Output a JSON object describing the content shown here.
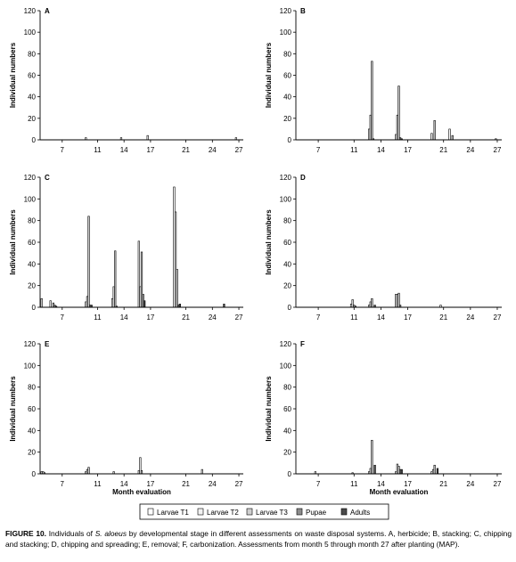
{
  "chart_data": {
    "type": "bar",
    "legend": {
      "position": "bottom",
      "entries": [
        {
          "name": "Larvae T1",
          "color": "#ffffff"
        },
        {
          "name": "Larvae T2",
          "color": "#f2f2f2"
        },
        {
          "name": "Larvae T3",
          "color": "#cfcfcf"
        },
        {
          "name": "Pupae",
          "color": "#8c8c8c"
        },
        {
          "name": "Adults",
          "color": "#4a4a4a"
        }
      ]
    },
    "ylabel": "Individual numbers",
    "xlabel": "Month evaluation",
    "ylim": [
      0,
      120
    ],
    "yticks": [
      "0",
      "20",
      "40",
      "60",
      "80",
      "100",
      "120"
    ],
    "months": [
      5,
      6,
      7,
      8,
      9,
      10,
      11,
      12,
      13,
      14,
      15,
      16,
      17,
      18,
      19,
      20,
      21,
      22,
      23,
      24,
      25,
      26,
      27
    ],
    "xticks": [
      "7",
      "11",
      "14",
      "17",
      "21",
      "24",
      "27"
    ],
    "xtick_months": [
      7,
      11,
      14,
      17,
      21,
      24,
      27
    ],
    "panels": [
      {
        "label": "A",
        "series": [
          {
            "name": "Larvae T1",
            "values": [
              0,
              0,
              0,
              0,
              0,
              2,
              0,
              0,
              0,
              2,
              0,
              0,
              4,
              0,
              0,
              0,
              0,
              0,
              0,
              0,
              0,
              0,
              2
            ]
          },
          {
            "name": "Larvae T2",
            "values": [
              0,
              0,
              0,
              0,
              0,
              0,
              0,
              0,
              0,
              0,
              0,
              0,
              0,
              0,
              0,
              0,
              0,
              0,
              0,
              0,
              0,
              0,
              0
            ]
          },
          {
            "name": "Larvae T3",
            "values": [
              0,
              0,
              0,
              0,
              0,
              0,
              0,
              0,
              0,
              0,
              0,
              0,
              0,
              0,
              0,
              0,
              0,
              0,
              0,
              0,
              0,
              0,
              0
            ]
          },
          {
            "name": "Pupae",
            "values": [
              0,
              0,
              0,
              0,
              0,
              0,
              0,
              0,
              0,
              0,
              0,
              0,
              0,
              0,
              0,
              0,
              0,
              0,
              0,
              0,
              0,
              0,
              0
            ]
          },
          {
            "name": "Adults",
            "values": [
              0,
              0,
              0,
              0,
              0,
              0,
              0,
              0,
              0,
              0,
              0,
              0,
              0,
              0,
              0,
              0,
              0,
              0,
              0,
              0,
              0,
              0,
              0
            ]
          }
        ]
      },
      {
        "label": "B",
        "series": [
          {
            "name": "Larvae T1",
            "values": [
              0,
              0,
              0,
              0,
              0,
              0,
              0,
              0,
              10,
              0,
              0,
              5,
              0,
              0,
              0,
              6,
              0,
              10,
              0,
              0,
              0,
              0,
              0
            ]
          },
          {
            "name": "Larvae T2",
            "values": [
              0,
              0,
              0,
              0,
              0,
              0,
              0,
              0,
              23,
              0,
              0,
              23,
              0,
              0,
              0,
              0,
              0,
              0,
              0,
              0,
              0,
              0,
              1
            ]
          },
          {
            "name": "Larvae T3",
            "values": [
              0,
              0,
              0,
              0,
              0,
              0,
              0,
              0,
              73,
              0,
              0,
              50,
              0,
              0,
              0,
              18,
              0,
              4,
              0,
              0,
              0,
              0,
              0
            ]
          },
          {
            "name": "Pupae",
            "values": [
              0,
              0,
              0,
              0,
              0,
              0,
              0,
              0,
              1,
              0,
              0,
              2,
              0,
              0,
              0,
              0,
              0,
              0,
              0,
              0,
              0,
              0,
              0
            ]
          },
          {
            "name": "Adults",
            "values": [
              0,
              0,
              0,
              0,
              0,
              0,
              0,
              0,
              0,
              0,
              0,
              1,
              0,
              0,
              0,
              0,
              0,
              0,
              0,
              0,
              0,
              0,
              0
            ]
          }
        ]
      },
      {
        "label": "C",
        "series": [
          {
            "name": "Larvae T1",
            "values": [
              8,
              6,
              0,
              0,
              0,
              5,
              0,
              0,
              8,
              0,
              0,
              61,
              0,
              0,
              0,
              111,
              0,
              0,
              0,
              0,
              0,
              0,
              0
            ]
          },
          {
            "name": "Larvae T2",
            "values": [
              0,
              0,
              0,
              0,
              0,
              10,
              0,
              0,
              19,
              0,
              0,
              19,
              0,
              0,
              0,
              88,
              0,
              0,
              0,
              0,
              0,
              0,
              0
            ]
          },
          {
            "name": "Larvae T3",
            "values": [
              0,
              4,
              0,
              0,
              0,
              84,
              0,
              0,
              52,
              0,
              0,
              51,
              0,
              0,
              0,
              35,
              0,
              0,
              0,
              0,
              0,
              0,
              0
            ]
          },
          {
            "name": "Pupae",
            "values": [
              0,
              2,
              0,
              0,
              0,
              2,
              0,
              0,
              1,
              0,
              0,
              12,
              0,
              0,
              0,
              2,
              0,
              0,
              0,
              0,
              0,
              0,
              0
            ]
          },
          {
            "name": "Adults",
            "values": [
              0,
              1,
              0,
              0,
              0,
              2,
              0,
              0,
              0,
              0,
              0,
              6,
              0,
              0,
              0,
              3,
              0,
              0,
              0,
              0,
              3,
              0,
              0
            ]
          }
        ]
      },
      {
        "label": "D",
        "series": [
          {
            "name": "Larvae T1",
            "values": [
              0,
              0,
              0,
              0,
              0,
              0,
              3,
              0,
              2,
              0,
              0,
              12,
              0,
              0,
              0,
              0,
              2,
              0,
              0,
              0,
              0,
              0,
              0
            ]
          },
          {
            "name": "Larvae T2",
            "values": [
              0,
              0,
              0,
              0,
              0,
              0,
              7,
              0,
              5,
              0,
              0,
              12,
              0,
              0,
              0,
              0,
              0,
              0,
              0,
              0,
              0,
              0,
              0
            ]
          },
          {
            "name": "Larvae T3",
            "values": [
              0,
              0,
              0,
              0,
              0,
              0,
              2,
              0,
              8,
              0,
              0,
              13,
              0,
              0,
              0,
              0,
              0,
              0,
              0,
              0,
              0,
              0,
              0
            ]
          },
          {
            "name": "Pupae",
            "values": [
              0,
              0,
              0,
              0,
              0,
              0,
              1,
              0,
              0,
              0,
              0,
              2,
              0,
              0,
              0,
              0,
              0,
              0,
              0,
              0,
              0,
              0,
              0
            ]
          },
          {
            "name": "Adults",
            "values": [
              0,
              0,
              0,
              0,
              0,
              0,
              0,
              0,
              2,
              0,
              0,
              0,
              0,
              0,
              0,
              0,
              0,
              0,
              0,
              0,
              0,
              0,
              0
            ]
          }
        ]
      },
      {
        "label": "E",
        "series": [
          {
            "name": "Larvae T1",
            "values": [
              2,
              0,
              0,
              0,
              0,
              2,
              0,
              0,
              0,
              0,
              0,
              3,
              0,
              0,
              0,
              0,
              0,
              0,
              0,
              0,
              0,
              0,
              0
            ]
          },
          {
            "name": "Larvae T2",
            "values": [
              2,
              0,
              0,
              0,
              0,
              4,
              0,
              0,
              2,
              0,
              0,
              15,
              0,
              0,
              0,
              0,
              0,
              0,
              4,
              0,
              0,
              0,
              0
            ]
          },
          {
            "name": "Larvae T3",
            "values": [
              1,
              0,
              0,
              0,
              0,
              6,
              0,
              0,
              0,
              0,
              0,
              3,
              0,
              0,
              0,
              0,
              0,
              0,
              0,
              0,
              0,
              0,
              0
            ]
          },
          {
            "name": "Pupae",
            "values": [
              0,
              0,
              0,
              0,
              0,
              0,
              0,
              0,
              0,
              0,
              0,
              0,
              0,
              0,
              0,
              0,
              0,
              0,
              0,
              0,
              0,
              0,
              0
            ]
          },
          {
            "name": "Adults",
            "values": [
              0,
              0,
              0,
              0,
              0,
              0,
              0,
              0,
              0,
              0,
              0,
              0,
              0,
              0,
              0,
              0,
              0,
              0,
              0,
              0,
              0,
              0,
              0
            ]
          }
        ]
      },
      {
        "label": "F",
        "series": [
          {
            "name": "Larvae T1",
            "values": [
              0,
              0,
              2,
              0,
              0,
              0,
              0,
              0,
              2,
              0,
              0,
              2,
              0,
              0,
              0,
              2,
              0,
              0,
              0,
              0,
              0,
              0,
              0
            ]
          },
          {
            "name": "Larvae T2",
            "values": [
              0,
              0,
              0,
              0,
              0,
              0,
              1,
              0,
              5,
              0,
              0,
              9,
              0,
              0,
              0,
              4,
              0,
              0,
              0,
              0,
              0,
              0,
              0
            ]
          },
          {
            "name": "Larvae T3",
            "values": [
              0,
              0,
              0,
              0,
              0,
              0,
              0,
              0,
              31,
              0,
              0,
              7,
              0,
              0,
              0,
              8,
              0,
              0,
              0,
              0,
              0,
              0,
              0
            ]
          },
          {
            "name": "Pupae",
            "values": [
              0,
              0,
              0,
              0,
              0,
              0,
              0,
              0,
              0,
              0,
              0,
              4,
              0,
              0,
              0,
              0,
              0,
              0,
              0,
              0,
              0,
              0,
              0
            ]
          },
          {
            "name": "Adults",
            "values": [
              0,
              0,
              0,
              0,
              0,
              0,
              0,
              0,
              8,
              0,
              0,
              4,
              0,
              0,
              0,
              5,
              0,
              0,
              0,
              0,
              0,
              0,
              0
            ]
          }
        ]
      }
    ]
  },
  "caption": {
    "label": "FIGURE 10.",
    "pre": " Individuals of ",
    "species": "S. aloeus",
    "post": " by developmental stage in different assessments on waste disposal systems. A, herbicide; B, stacking; C, chipping and stacking; D, chipping and spreading; E, removal; F, carbonization. Assessments from month 5 through month 27 after planting (MAP)."
  }
}
